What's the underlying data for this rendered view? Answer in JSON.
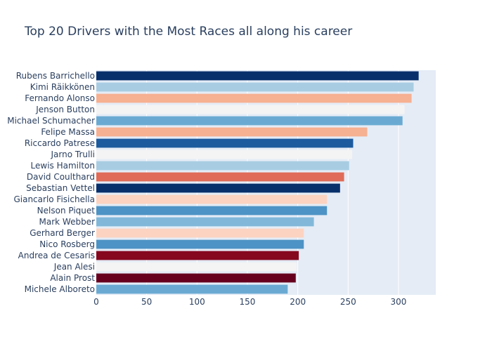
{
  "chart_data": {
    "type": "bar",
    "orientation": "horizontal",
    "title": "Top 20 Drivers with the Most Races all along his career",
    "xlabel": "",
    "ylabel": "",
    "xlim": [
      0,
      337
    ],
    "xticks": [
      0,
      50,
      100,
      150,
      200,
      250,
      300
    ],
    "grid": true,
    "background": "#e5ecf6",
    "categories": [
      "Rubens Barrichello",
      "Kimi Räikkönen",
      "Fernando Alonso",
      "Jenson Button",
      "Michael Schumacher",
      "Felipe Massa",
      "Riccardo Patrese",
      "Jarno Trulli",
      "Lewis Hamilton",
      "David Coulthard",
      "Sebastian Vettel",
      "Giancarlo Fisichella",
      "Nelson Piquet",
      "Mark Webber",
      "Gerhard Berger",
      "Nico Rosberg",
      "Andrea de Cesaris",
      "Jean Alesi",
      "Alain Prost",
      "Michele Alboreto"
    ],
    "values": [
      320,
      315,
      313,
      306,
      304,
      269,
      255,
      254,
      251,
      246,
      242,
      229,
      229,
      216,
      206,
      206,
      201,
      199,
      198,
      190
    ],
    "colors": [
      "#08306b",
      "#a8cde3",
      "#f6b092",
      "#f4f4f4",
      "#6aaad2",
      "#f6b092",
      "#1c5b9e",
      "#f4f4f4",
      "#a8cde3",
      "#df6b58",
      "#08306b",
      "#fcd3c0",
      "#4d93c5",
      "#81b8da",
      "#fcd3c0",
      "#4d93c5",
      "#86081f",
      "#f4f4f4",
      "#67001f",
      "#6aaad2"
    ]
  }
}
